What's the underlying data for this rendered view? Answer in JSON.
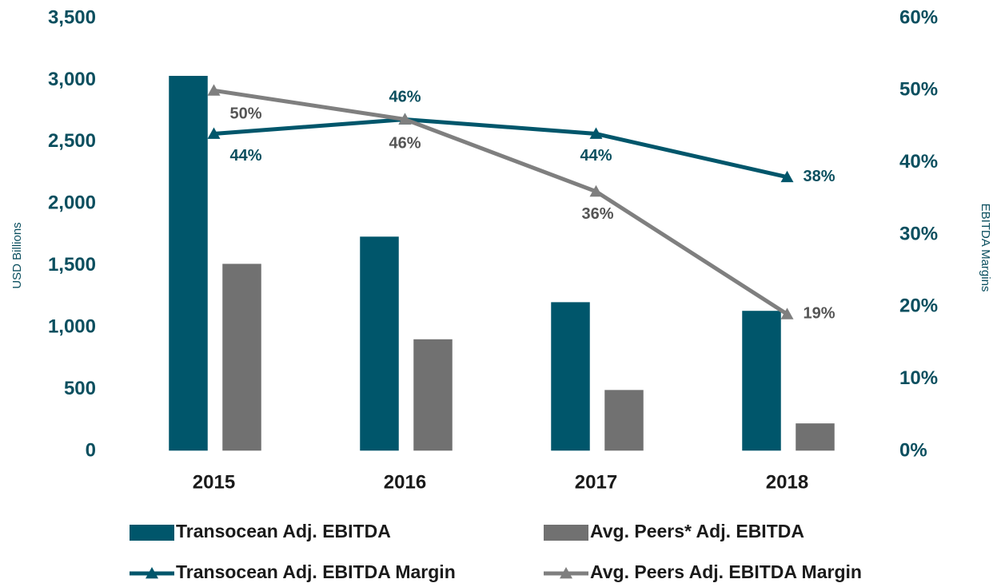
{
  "chart_data": {
    "type": "bar",
    "categories": [
      "2015",
      "2016",
      "2017",
      "2018"
    ],
    "series": [
      {
        "name": "Transocean Adj. EBITDA",
        "type": "bar",
        "color": "#00566b",
        "values": [
          3040,
          1740,
          1210,
          1140
        ]
      },
      {
        "name": "Avg. Peers* Adj. EBITDA",
        "type": "bar",
        "color": "#717171",
        "values": [
          1520,
          910,
          500,
          230
        ]
      },
      {
        "name": "Transocean Adj. EBITDA Margin",
        "type": "line",
        "axis": "y2",
        "color": "#00566b",
        "values": [
          44,
          46,
          44,
          38
        ],
        "value_labels": [
          "44%",
          "46%",
          "44%",
          "38%"
        ]
      },
      {
        "name": "Avg. Peers Adj. EBITDA Margin",
        "type": "line",
        "axis": "y2",
        "color": "#7f7f7f",
        "values": [
          50,
          46,
          36,
          19
        ],
        "value_labels": [
          "50%",
          "46%",
          "36%",
          "19%"
        ]
      }
    ],
    "ylabel": "USD Billions",
    "y2label": "EBITDA Margins",
    "ylim": [
      0,
      3500
    ],
    "yticks": [
      0,
      500,
      {
        "value": 1000,
        "label": "1,000"
      },
      {
        "value": 1500,
        "label": "1,500"
      },
      {
        "value": 2000,
        "label": "2,000"
      },
      {
        "value": 2500,
        "label": "2,500"
      },
      {
        "value": 3000,
        "label": "3,000"
      },
      {
        "value": 3500,
        "label": "3,500"
      }
    ],
    "y2lim": [
      0,
      60
    ],
    "y2ticks": [
      {
        "value": 0,
        "label": "0%"
      },
      {
        "value": 10,
        "label": "10%"
      },
      {
        "value": 20,
        "label": "20%"
      },
      {
        "value": 30,
        "label": "30%"
      },
      {
        "value": 40,
        "label": "40%"
      },
      {
        "value": 50,
        "label": "50%"
      },
      {
        "value": 60,
        "label": "60%"
      }
    ]
  }
}
